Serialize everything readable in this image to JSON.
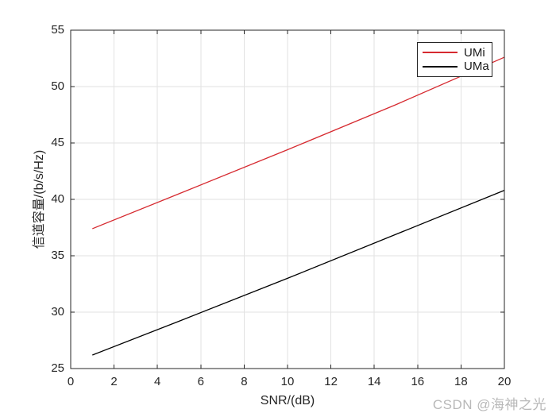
{
  "chart_data": {
    "type": "line",
    "title": "",
    "xlabel": "SNR/(dB)",
    "ylabel": "信道容量/(b/s/Hz)",
    "xlim": [
      0,
      20
    ],
    "ylim": [
      25,
      55
    ],
    "xticks": [
      0,
      2,
      4,
      6,
      8,
      10,
      12,
      14,
      16,
      18,
      20
    ],
    "yticks": [
      25,
      30,
      35,
      40,
      45,
      50,
      55
    ],
    "grid": true,
    "legend_position": "top-right",
    "series": [
      {
        "name": "UMi",
        "color": "#d62a30",
        "x": [
          1,
          5,
          10,
          15,
          20
        ],
        "y": [
          37.4,
          40.5,
          44.4,
          48.4,
          52.6
        ]
      },
      {
        "name": "UMa",
        "color": "#000000",
        "x": [
          1,
          5,
          10,
          15,
          20
        ],
        "y": [
          26.2,
          29.2,
          33.0,
          36.9,
          40.8
        ]
      }
    ]
  },
  "watermark": {
    "text": "CSDN @海神之光",
    "color": "#b8b8b8"
  },
  "colors": {
    "axis": "#262626",
    "grid": "#e2e2e2",
    "background": "#ffffff"
  }
}
